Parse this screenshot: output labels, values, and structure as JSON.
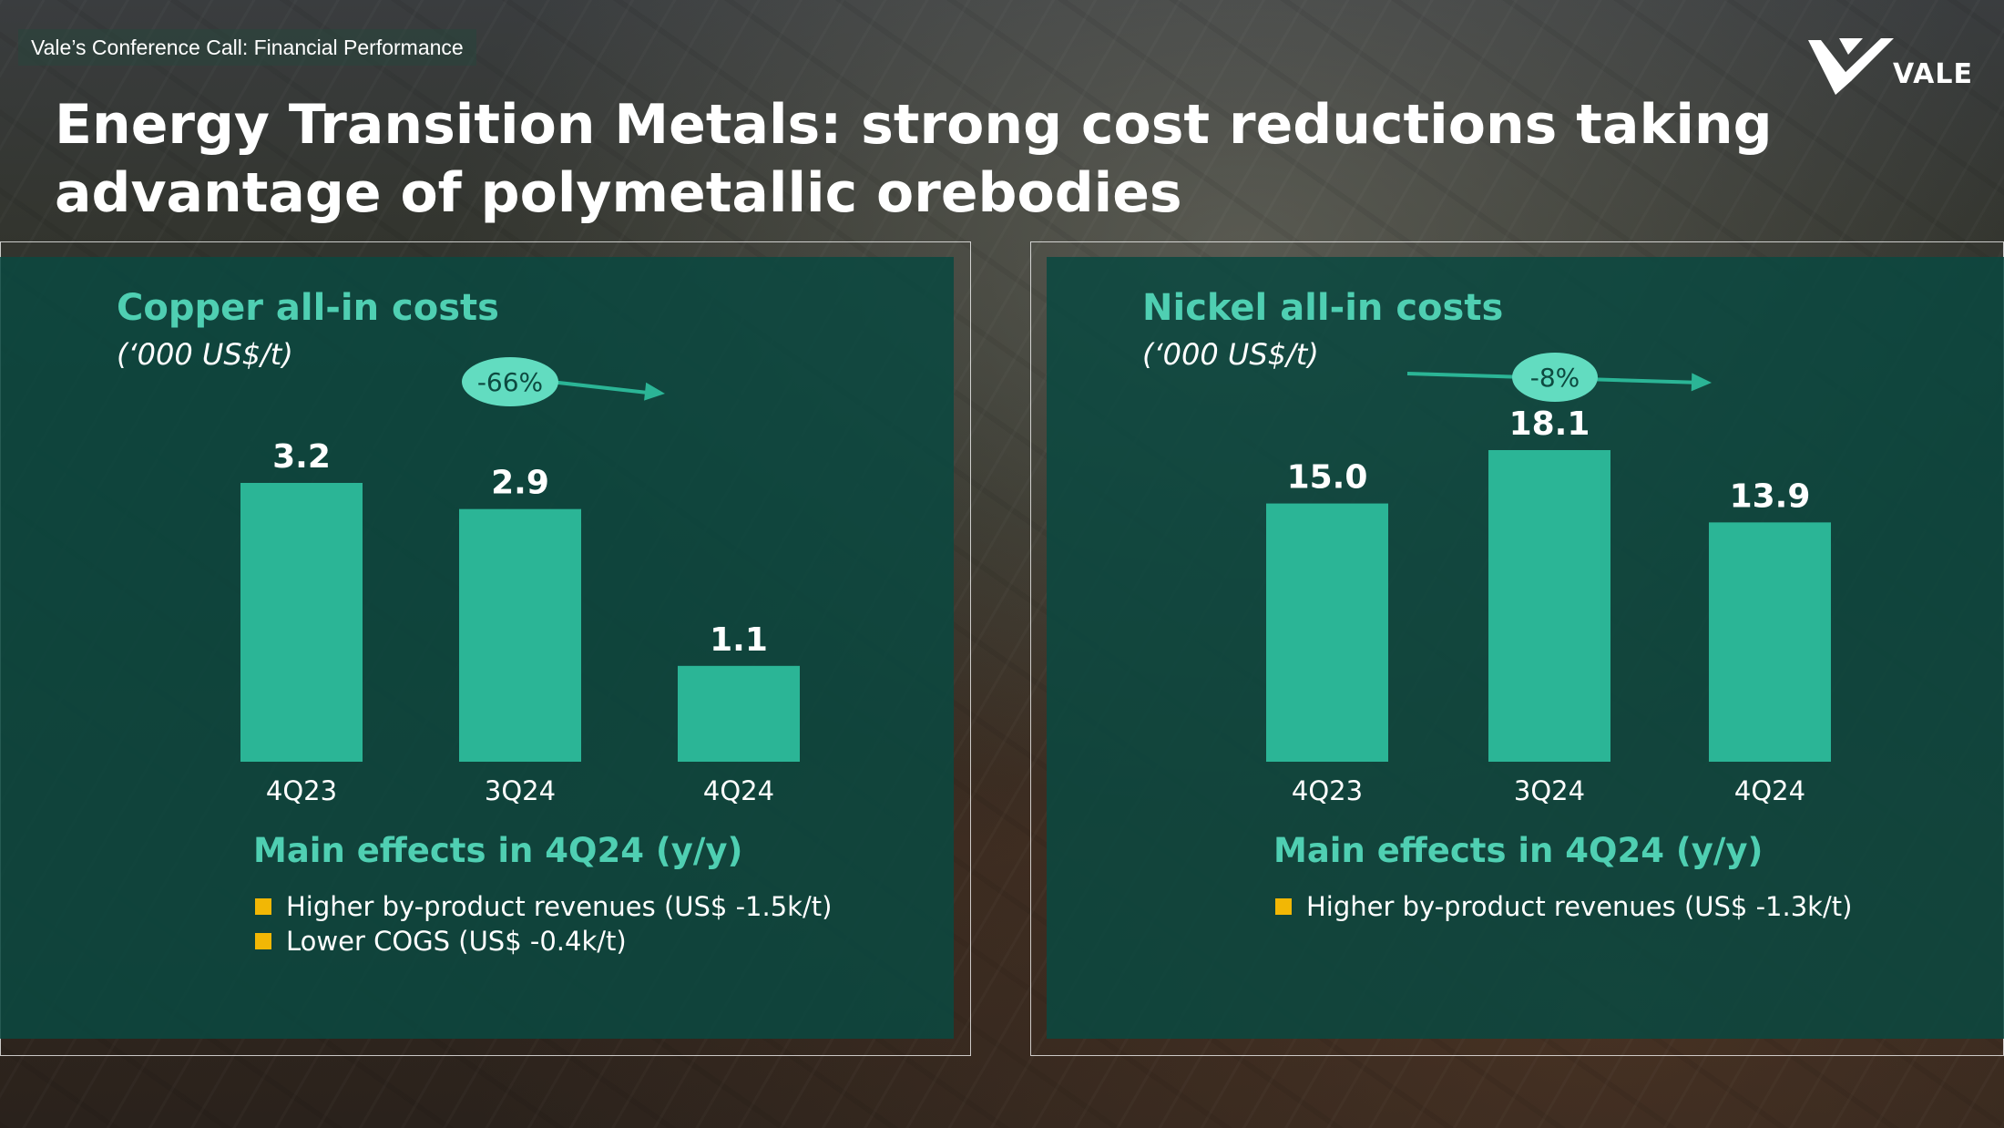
{
  "header": {
    "label": "Vale’s Conference Call:  Financial Performance"
  },
  "title": "Energy Transition Metals: strong cost reductions taking advantage of polymetallic orebodies",
  "logo": {
    "text": "VALE"
  },
  "colors": {
    "bar": "#2bb596",
    "accent": "#4fcfb2",
    "bullet": "#f2b705",
    "badge": "#62dcc0",
    "panel": "#0a4840"
  },
  "chart_data": [
    {
      "type": "bar",
      "title": "Copper all-in costs",
      "subtitle": "(‘000 US$/t)",
      "categories": [
        "4Q23",
        "3Q24",
        "4Q24"
      ],
      "values": [
        3.2,
        2.9,
        1.1
      ],
      "data_labels": [
        "3.2",
        "2.9",
        "1.1"
      ],
      "change_badge": "-66%",
      "ylim": [
        0,
        3.2
      ],
      "grid": false,
      "legend": "none"
    },
    {
      "type": "bar",
      "title": "Nickel all-in costs",
      "subtitle": "(‘000 US$/t)",
      "categories": [
        "4Q23",
        "3Q24",
        "4Q24"
      ],
      "values": [
        15.0,
        18.1,
        13.9
      ],
      "data_labels": [
        "15.0",
        "18.1",
        "13.9"
      ],
      "change_badge": "-8%",
      "ylim": [
        0,
        18.1
      ],
      "grid": false,
      "legend": "none"
    }
  ],
  "copper_effects": {
    "title": "Main effects in 4Q24 (y/y)",
    "items": [
      "Higher by-product revenues (US$ -1.5k/t)",
      "Lower COGS (US$ -0.4k/t)"
    ]
  },
  "nickel_effects": {
    "title": "Main effects in 4Q24 (y/y)",
    "items": [
      "Higher by-product revenues (US$ -1.3k/t)"
    ]
  }
}
